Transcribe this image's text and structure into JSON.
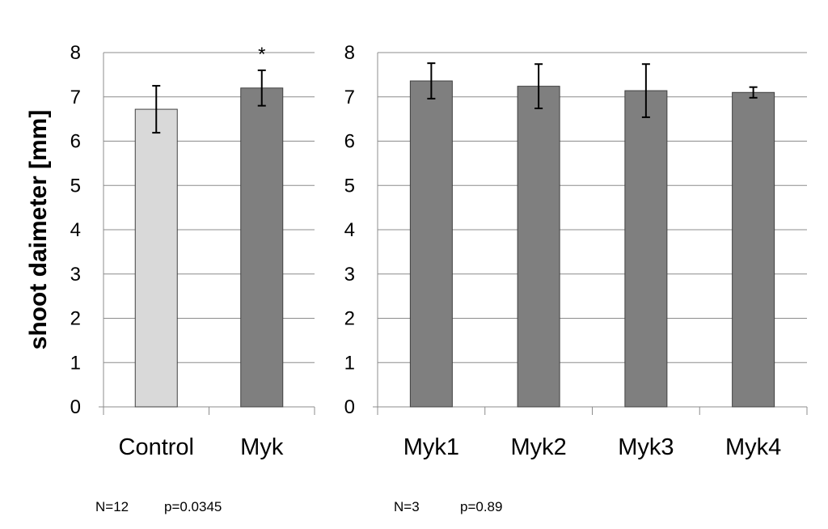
{
  "chart_data": [
    {
      "type": "bar",
      "ylabel": "shoot daimeter [mm]",
      "ylim": [
        0,
        8
      ],
      "yticks": [
        "0",
        "1",
        "2",
        "3",
        "4",
        "5",
        "6",
        "7",
        "8"
      ],
      "grid": true,
      "categories": [
        "Control",
        "Myk"
      ],
      "values": [
        6.72,
        7.2
      ],
      "error": [
        0.53,
        0.4
      ],
      "bar_colors": [
        "#d9d9d9",
        "#7f7f7f"
      ],
      "annotations": [
        {
          "category": "Myk",
          "text": "*"
        }
      ],
      "notes": {
        "n": "N=12",
        "p": "p=0.0345"
      }
    },
    {
      "type": "bar",
      "ylim": [
        0,
        8
      ],
      "yticks": [
        "0",
        "1",
        "2",
        "3",
        "4",
        "5",
        "6",
        "7",
        "8"
      ],
      "grid": true,
      "categories": [
        "Myk1",
        "Myk2",
        "Myk3",
        "Myk4"
      ],
      "values": [
        7.36,
        7.24,
        7.14,
        7.1
      ],
      "error": [
        0.4,
        0.5,
        0.6,
        0.12
      ],
      "bar_colors": [
        "#7f7f7f",
        "#7f7f7f",
        "#7f7f7f",
        "#7f7f7f"
      ],
      "annotations": [],
      "notes": {
        "n": "N=3",
        "p": "p=0.89"
      }
    }
  ]
}
